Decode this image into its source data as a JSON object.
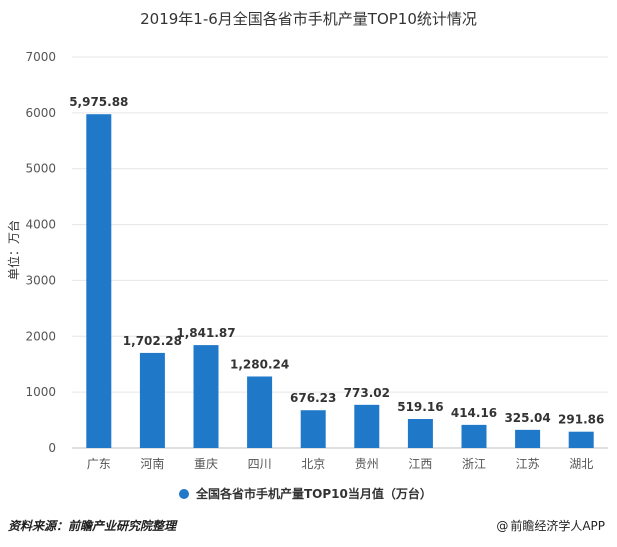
{
  "chart_data": {
    "type": "bar",
    "title": "2019年1-6月全国各省市手机产量TOP10统计情况",
    "ylabel": "单位：万台",
    "xlabel": "",
    "categories": [
      "广东",
      "河南",
      "重庆",
      "四川",
      "北京",
      "贵州",
      "江西",
      "浙江",
      "江苏",
      "湖北"
    ],
    "series": [
      {
        "name": "全国各省市手机产量TOP10当月值（万台）",
        "values": [
          5975.88,
          1702.28,
          1841.87,
          1280.24,
          676.23,
          773.02,
          519.16,
          414.16,
          325.04,
          291.86
        ],
        "labels": [
          "5,975.88",
          "1,702.28",
          "1,841.87",
          "1,280.24",
          "676.23",
          "773.02",
          "519.16",
          "414.16",
          "325.04",
          "291.86"
        ]
      }
    ],
    "ylim": [
      0,
      7000
    ],
    "yticks": [
      0,
      1000,
      2000,
      3000,
      4000,
      5000,
      6000,
      7000
    ],
    "grid": true,
    "legend_position": "bottom",
    "bar_color": "#1f78c8"
  },
  "footer": {
    "source": "资料来源：前瞻产业研究院整理",
    "brand": "前瞻经济学人APP",
    "brand_prefix": "@"
  }
}
